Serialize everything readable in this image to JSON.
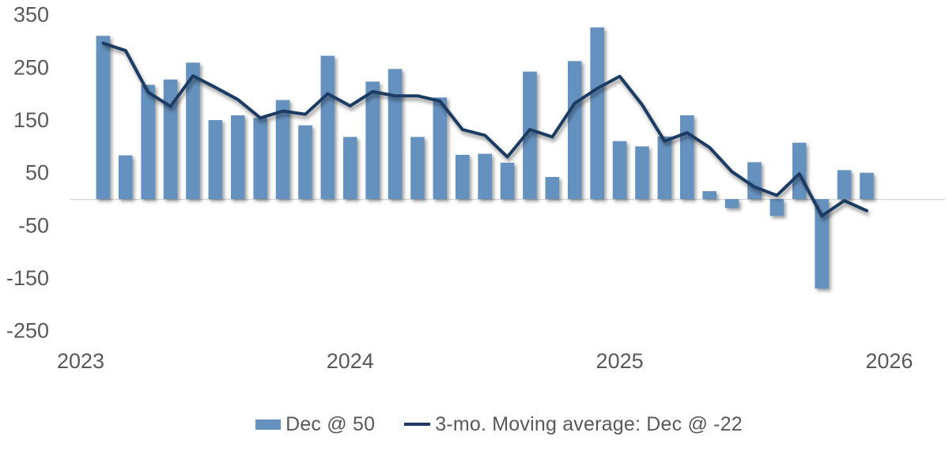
{
  "chart_data": {
    "type": "bar",
    "title": "",
    "xlabel": "",
    "ylabel": "",
    "categories": [
      "Feb 2023",
      "Mar 2023",
      "Apr 2023",
      "May 2023",
      "Jun 2023",
      "Jul 2023",
      "Aug 2023",
      "Sep 2023",
      "Oct 2023",
      "Nov 2023",
      "Dec 2023",
      "Jan 2024",
      "Feb 2024",
      "Mar 2024",
      "Apr 2024",
      "May 2024",
      "Jun 2024",
      "Jul 2024",
      "Aug 2024",
      "Sep 2024",
      "Oct 2024",
      "Nov 2024",
      "Dec 2024",
      "Jan 2025",
      "Feb 2025",
      "Mar 2025",
      "Apr 2025",
      "May 2025",
      "Jun 2025",
      "Jul 2025",
      "Aug 2025",
      "Sep 2025",
      "Oct 2025",
      "Nov 2025",
      "Dec 2025"
    ],
    "series": [
      {
        "name": "Dec @ 50",
        "type": "bar",
        "color": "#6591BE",
        "values": [
          310,
          83,
          217,
          227,
          259,
          150,
          159,
          154,
          188,
          140,
          272,
          118,
          223,
          247,
          118,
          193,
          84,
          86,
          69,
          242,
          42,
          262,
          326,
          110,
          100,
          119,
          159,
          15,
          -17,
          70,
          -32,
          107,
          -170,
          55,
          50
        ]
      },
      {
        "name": "3-mo. Moving average: Dec @ -22",
        "type": "line",
        "color": "#1F3A63",
        "values": [
          296,
          282,
          203,
          176,
          234,
          212,
          189,
          154,
          167,
          161,
          200,
          177,
          204,
          196,
          196,
          186,
          132,
          121,
          80,
          132,
          118,
          182,
          210,
          233,
          179,
          110,
          126,
          98,
          52,
          23,
          7,
          48,
          -32,
          -3,
          -22
        ]
      }
    ],
    "x_tick_labels": [
      "2023",
      "2024",
      "2025",
      "2026"
    ],
    "y_ticks": [
      350,
      250,
      150,
      50,
      -50,
      -150,
      -250
    ],
    "ylim": [
      -250,
      350
    ],
    "grid": "single horizontal gridline at zero only",
    "legend_position": "bottom-center",
    "axis_text_color": "#595959",
    "gridline_color": "#D9D9D9",
    "background_color": "#FFFFFF"
  }
}
